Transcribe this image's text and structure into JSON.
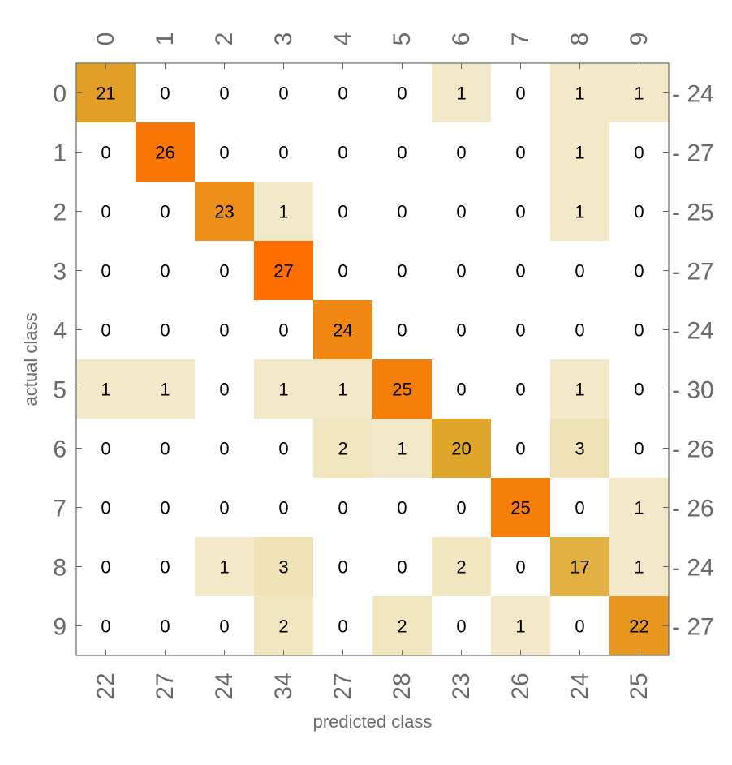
{
  "chart_data": {
    "type": "heatmap",
    "title": "",
    "xlabel": "predicted class",
    "ylabel": "actual class",
    "x_categories": [
      "0",
      "1",
      "2",
      "3",
      "4",
      "5",
      "6",
      "7",
      "8",
      "9"
    ],
    "y_categories": [
      "0",
      "1",
      "2",
      "3",
      "4",
      "5",
      "6",
      "7",
      "8",
      "9"
    ],
    "matrix": [
      [
        21,
        0,
        0,
        0,
        0,
        0,
        1,
        0,
        1,
        1
      ],
      [
        0,
        26,
        0,
        0,
        0,
        0,
        0,
        0,
        1,
        0
      ],
      [
        0,
        0,
        23,
        1,
        0,
        0,
        0,
        0,
        1,
        0
      ],
      [
        0,
        0,
        0,
        27,
        0,
        0,
        0,
        0,
        0,
        0
      ],
      [
        0,
        0,
        0,
        0,
        24,
        0,
        0,
        0,
        0,
        0
      ],
      [
        1,
        1,
        0,
        1,
        1,
        25,
        0,
        0,
        1,
        0
      ],
      [
        0,
        0,
        0,
        0,
        2,
        1,
        20,
        0,
        3,
        0
      ],
      [
        0,
        0,
        0,
        0,
        0,
        0,
        0,
        25,
        0,
        1
      ],
      [
        0,
        0,
        1,
        3,
        0,
        0,
        2,
        0,
        17,
        1
      ],
      [
        0,
        0,
        0,
        2,
        0,
        2,
        0,
        1,
        0,
        22
      ]
    ],
    "row_totals": [
      "24",
      "27",
      "25",
      "27",
      "24",
      "30",
      "26",
      "26",
      "24",
      "27"
    ],
    "column_totals": [
      "22",
      "27",
      "24",
      "34",
      "27",
      "28",
      "23",
      "26",
      "24",
      "25"
    ],
    "color_scale": {
      "zero": "#ffffff",
      "low": "#f3edd2",
      "mid": "#e0a52a",
      "high": "#ff6f00"
    },
    "grid": false
  }
}
